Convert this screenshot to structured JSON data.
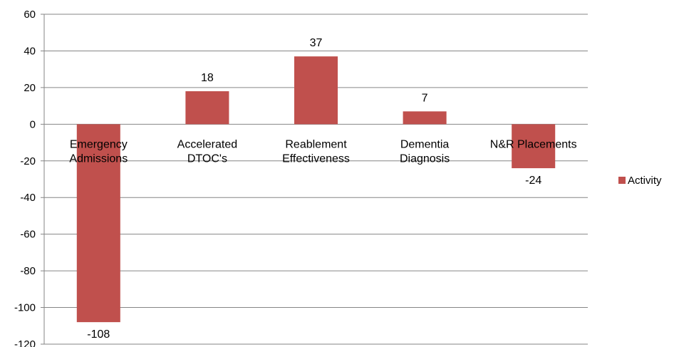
{
  "chart_data": {
    "type": "bar",
    "categories": [
      [
        "Emergency",
        "Admissions"
      ],
      [
        "Accelerated",
        "DTOC's"
      ],
      [
        "Reablement",
        "Effectiveness"
      ],
      [
        "Dementia",
        "Diagnosis"
      ],
      [
        "N&R Placements"
      ]
    ],
    "series": [
      {
        "name": "Activity",
        "values": [
          -108,
          18,
          37,
          7,
          -24
        ],
        "color": "#C0504D"
      }
    ],
    "ylim": [
      -120,
      60
    ],
    "yticks": [
      60,
      40,
      20,
      0,
      -20,
      -40,
      -60,
      -80,
      -100,
      -120
    ],
    "grid": true,
    "legend": "right",
    "title": "",
    "xlabel": "",
    "ylabel": ""
  }
}
